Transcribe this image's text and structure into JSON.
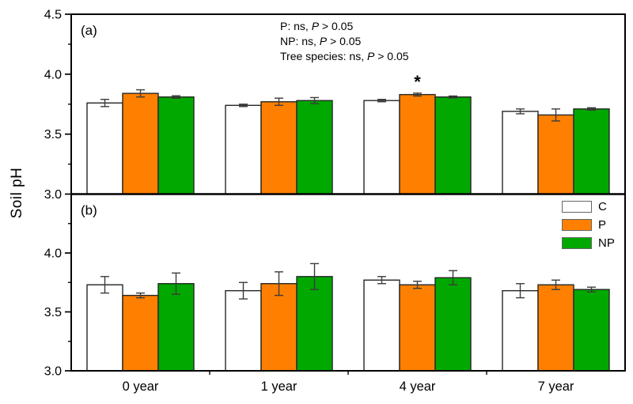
{
  "figure": {
    "ylabel": "Soil pH",
    "annotation_lines": [
      {
        "prefix": "P: ns, ",
        "italic": "P",
        "suffix": " > 0.05"
      },
      {
        "prefix": "NP: ns, ",
        "italic": "P",
        "suffix": " > 0.05"
      },
      {
        "prefix": "Tree species: ns, ",
        "italic": "P",
        "suffix": " > 0.05"
      }
    ],
    "legend": {
      "entries": [
        {
          "label": "C",
          "color": "#FFFFFF"
        },
        {
          "label": "P",
          "color": "#FF8000"
        },
        {
          "label": "NP",
          "color": "#00A800"
        }
      ]
    },
    "colors": {
      "frame": "#000000",
      "bar_border": "#262626",
      "error_bar": "#3C3C3C",
      "orange": "#FF8000",
      "green": "#00A800",
      "white": "#FFFFFF"
    }
  },
  "chart_data": [
    {
      "type": "bar",
      "panel_label": "(a)",
      "categories": [
        "0 year",
        "1 year",
        "4 year",
        "7 year"
      ],
      "series": [
        {
          "name": "C",
          "color": "#FFFFFF",
          "values": [
            3.76,
            3.74,
            3.78,
            3.69
          ],
          "errors": [
            0.03,
            0.01,
            0.01,
            0.02
          ]
        },
        {
          "name": "P",
          "color": "#FF8000",
          "values": [
            3.84,
            3.77,
            3.83,
            3.66
          ],
          "errors": [
            0.03,
            0.03,
            0.012,
            0.05
          ]
        },
        {
          "name": "NP",
          "color": "#00A800",
          "values": [
            3.81,
            3.78,
            3.81,
            3.71
          ],
          "errors": [
            0.01,
            0.025,
            0.008,
            0.01
          ]
        }
      ],
      "ylim": [
        3.0,
        4.5
      ],
      "yticks": [
        {
          "v": 3.0,
          "label": "3.0"
        },
        {
          "v": 3.5,
          "label": "3.5"
        },
        {
          "v": 4.0,
          "label": "4.0"
        },
        {
          "v": 4.5,
          "label": "4.5"
        }
      ],
      "yticks_minor": [
        3.25,
        3.75,
        4.25
      ],
      "significance": {
        "category": "4 year",
        "series": "P",
        "marker": "*"
      },
      "stats_note": "P: ns, P > 0.05; NP: ns, P > 0.05; Tree species: ns, P > 0.05"
    },
    {
      "type": "bar",
      "panel_label": "(b)",
      "categories": [
        "0 year",
        "1 year",
        "4 year",
        "7 year"
      ],
      "series": [
        {
          "name": "C",
          "color": "#FFFFFF",
          "values": [
            3.73,
            3.68,
            3.77,
            3.68
          ],
          "errors": [
            0.07,
            0.07,
            0.03,
            0.06
          ]
        },
        {
          "name": "P",
          "color": "#FF8000",
          "values": [
            3.64,
            3.74,
            3.73,
            3.73
          ],
          "errors": [
            0.02,
            0.1,
            0.03,
            0.04
          ]
        },
        {
          "name": "NP",
          "color": "#00A800",
          "values": [
            3.74,
            3.8,
            3.79,
            3.69
          ],
          "errors": [
            0.09,
            0.11,
            0.06,
            0.02
          ]
        }
      ],
      "ylim": [
        3.0,
        4.5
      ],
      "yticks": [
        {
          "v": 3.0,
          "label": "3.0"
        },
        {
          "v": 3.5,
          "label": "3.5"
        },
        {
          "v": 4.0,
          "label": "4.0"
        }
      ],
      "yticks_minor": [
        3.25,
        3.75,
        4.25
      ]
    }
  ]
}
